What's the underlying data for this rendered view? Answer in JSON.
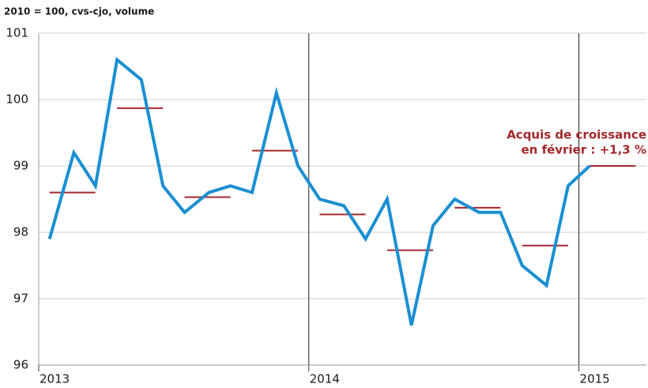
{
  "chart_data": {
    "type": "line",
    "title": "2010 = 100, cvs-cjo, volume",
    "annotation": [
      "Acquis de croissance",
      "en février :  +1,3 %"
    ],
    "x": [
      2013.04,
      2013.13,
      2013.21,
      2013.29,
      2013.38,
      2013.46,
      2013.54,
      2013.63,
      2013.71,
      2013.79,
      2013.88,
      2013.96,
      2014.04,
      2014.13,
      2014.21,
      2014.29,
      2014.38,
      2014.46,
      2014.54,
      2014.63,
      2014.71,
      2014.79,
      2014.88,
      2014.96,
      2015.04
    ],
    "series": [
      {
        "color": "#1b8fd2",
        "values": [
          97.9,
          99.2,
          98.7,
          100.6,
          100.3,
          98.7,
          98.3,
          98.6,
          98.7,
          98.6,
          100.1,
          99.0,
          98.5,
          98.4,
          97.9,
          98.5,
          96.6,
          98.1,
          98.5,
          98.3,
          98.3,
          97.5,
          97.2,
          98.7,
          99.0
        ]
      }
    ],
    "segments": {
      "color": "#a3292b",
      "x_start": [
        2013.04,
        2013.29,
        2013.54,
        2013.79,
        2014.04,
        2014.29,
        2014.54,
        2014.79,
        2015.04
      ],
      "x_end": [
        2013.21,
        2013.46,
        2013.71,
        2013.96,
        2014.21,
        2014.46,
        2014.71,
        2014.96,
        2015.21
      ],
      "values": [
        98.6,
        99.87,
        98.53,
        99.23,
        98.27,
        97.73,
        98.37,
        97.8,
        99.0
      ]
    },
    "xlim": [
      2013,
      2015.25
    ],
    "xticks": [
      2013,
      2014,
      2015
    ],
    "ylim": [
      96,
      101
    ],
    "yticks": [
      96,
      97,
      98,
      99,
      100,
      101
    ],
    "grid": true
  }
}
